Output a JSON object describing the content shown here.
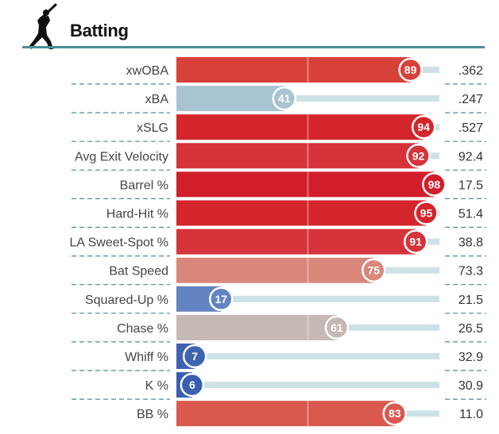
{
  "header": {
    "title": "Batting",
    "icon": "batter-icon"
  },
  "chart_data": {
    "type": "bar",
    "orientation": "horizontal",
    "xlim": [
      0,
      100
    ],
    "categories": [
      "xwOBA",
      "xBA",
      "xSLG",
      "Avg Exit Velocity",
      "Barrel %",
      "Hard-Hit %",
      "LA Sweet-Spot %",
      "Bat Speed",
      "Squared-Up %",
      "Chase %",
      "Whiff %",
      "K %",
      "BB %"
    ],
    "series": [
      {
        "values": [
          89,
          41,
          94,
          92,
          98,
          95,
          91,
          75,
          17,
          61,
          7,
          6,
          83
        ]
      }
    ],
    "stat_values": [
      ".362",
      ".247",
      ".527",
      "92.4",
      "17.5",
      "51.4",
      "38.8",
      "73.3",
      "21.5",
      "26.5",
      "32.9",
      "30.9",
      "11.0"
    ],
    "colors": [
      "#d8403a",
      "#a8c4d0",
      "#d3252b",
      "#d6333a",
      "#d21e2b",
      "#d3252b",
      "#d6333a",
      "#d9877b",
      "#6384c1",
      "#c5b8b5",
      "#3e63b1",
      "#3a5fb0",
      "#d9594f"
    ],
    "track_color": "#cde2e4",
    "divider_color": "#4c8c95"
  }
}
